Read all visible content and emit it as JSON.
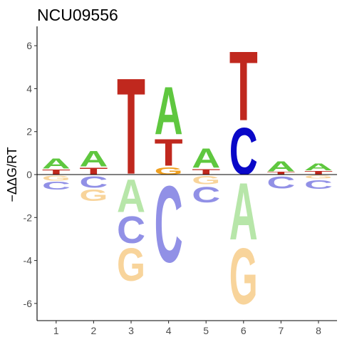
{
  "chart_data": {
    "type": "sequence-logo",
    "title": "NCU09556",
    "ylabel": "−ΔΔG/RT",
    "xlabel": "",
    "ylim": [
      -6.8,
      6.9
    ],
    "yticks": [
      -6,
      -4,
      -2,
      0,
      2,
      4,
      6
    ],
    "xticks": [
      1,
      2,
      3,
      4,
      5,
      6,
      7,
      8
    ],
    "grid": false,
    "legend": "none",
    "base_colors": {
      "A": "#5fc73f",
      "C": "#0a08c8",
      "G": "#f0a020",
      "T": "#c0281e"
    },
    "positions": [
      {
        "pos": 1,
        "positive": [
          {
            "base": "T",
            "value": 0.28
          },
          {
            "base": "A",
            "value": 0.55
          }
        ],
        "negative": [
          {
            "base": "G",
            "value": 0.28
          },
          {
            "base": "C",
            "value": 0.42
          }
        ]
      },
      {
        "pos": 2,
        "positive": [
          {
            "base": "T",
            "value": 0.38
          },
          {
            "base": "A",
            "value": 0.85
          }
        ],
        "negative": [
          {
            "base": "C",
            "value": 0.62
          },
          {
            "base": "G",
            "value": 0.62
          }
        ]
      },
      {
        "pos": 3,
        "positive": [
          {
            "base": "T",
            "value": 5.15
          }
        ],
        "negative": [
          {
            "base": "A",
            "value": 1.75
          },
          {
            "base": "C",
            "value": 1.45
          },
          {
            "base": "G",
            "value": 1.75
          }
        ]
      },
      {
        "pos": 4,
        "positive": [
          {
            "base": "G",
            "value": 0.4
          },
          {
            "base": "T",
            "value": 1.45
          },
          {
            "base": "A",
            "value": 2.55
          }
        ],
        "negative": [
          {
            "base": "C",
            "value": 4.1
          }
        ]
      },
      {
        "pos": 5,
        "positive": [
          {
            "base": "T",
            "value": 0.3
          },
          {
            "base": "A",
            "value": 1.05
          }
        ],
        "negative": [
          {
            "base": "G",
            "value": 0.45
          },
          {
            "base": "C",
            "value": 0.85
          }
        ]
      },
      {
        "pos": 6,
        "positive": [
          {
            "base": "C",
            "value": 2.5
          },
          {
            "base": "T",
            "value": 3.72
          }
        ],
        "negative": [
          {
            "base": "A",
            "value": 3.05
          },
          {
            "base": "G",
            "value": 3.0
          }
        ]
      },
      {
        "pos": 7,
        "positive": [
          {
            "base": "T",
            "value": 0.15
          },
          {
            "base": "A",
            "value": 0.55
          }
        ],
        "negative": [
          {
            "base": "C",
            "value": 0.65
          }
        ]
      },
      {
        "pos": 8,
        "positive": [
          {
            "base": "T",
            "value": 0.2
          },
          {
            "base": "A",
            "value": 0.38
          }
        ],
        "negative": [
          {
            "base": "G",
            "value": 0.18
          },
          {
            "base": "C",
            "value": 0.48
          }
        ]
      }
    ]
  }
}
